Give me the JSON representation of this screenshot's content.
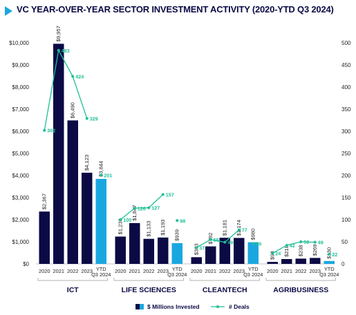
{
  "title": "VC YEAR-OVER-YEAR SECTOR INVESTMENT ACTIVITY (2020-YTD Q3 2024)",
  "colors": {
    "bar": "#0b0a45",
    "bar_ytd": "#1aa7e0",
    "deals": "#1dbf97",
    "title": "#0b0a45",
    "accent": "#1aa7e0"
  },
  "chart_data": {
    "type": "bar",
    "y_left": {
      "min": 0,
      "max": 10000,
      "ticks": [
        "$0",
        "$1,000",
        "$2,000",
        "$3,000",
        "$4,000",
        "$5,000",
        "$6,000",
        "$7,000",
        "$8,000",
        "$9,000",
        "$10,000"
      ]
    },
    "y_right": {
      "min": 0,
      "max": 500,
      "ticks": [
        "0",
        "50",
        "100",
        "150",
        "200",
        "250",
        "300",
        "350",
        "400",
        "450",
        "500"
      ]
    },
    "groups": [
      {
        "name": "ICT",
        "categories": [
          "2020",
          "2021",
          "2022",
          "2023",
          "YTD Q3 2024"
        ],
        "invested": [
          2367,
          9957,
          6490,
          4123,
          3844
        ],
        "invested_labels": [
          "$2,367",
          "$9,957",
          "$6,490",
          "$4,123",
          "$3,844"
        ],
        "deals": [
          302,
          483,
          424,
          329,
          201
        ],
        "deal_labels": [
          "302",
          "483",
          "424",
          "329",
          "201"
        ]
      },
      {
        "name": "LIFE SCIENCES",
        "categories": [
          "2020",
          "2021",
          "2022",
          "2023",
          "YTD Q3 2024"
        ],
        "invested": [
          1236,
          1847,
          1133,
          1193,
          939
        ],
        "invested_labels": [
          "$1,236",
          "$1,847",
          "$1,133",
          "$1,193",
          "$939"
        ],
        "deals": [
          100,
          126,
          127,
          157,
          98
        ],
        "deal_labels": [
          "100",
          "126",
          "127",
          "157",
          "98"
        ]
      },
      {
        "name": "CLEANTECH",
        "categories": [
          "2020",
          "2021",
          "2022",
          "2023",
          "YTD Q3 2024"
        ],
        "invested": [
          303,
          792,
          1181,
          1174,
          980
        ],
        "invested_labels": [
          "$303",
          "$792",
          "$1,181",
          "$1,174",
          "$980"
        ],
        "deals": [
          37,
          55,
          49,
          77,
          46
        ],
        "deal_labels": [
          "37",
          "55",
          "49",
          "77",
          "46"
        ]
      },
      {
        "name": "AGRIBUSINESS",
        "categories": [
          "2020",
          "2021",
          "2022",
          "2023",
          "YTD Q3 2024"
        ],
        "invested": [
          90,
          218,
          238,
          269,
          130
        ],
        "invested_labels": [
          "$90",
          "$218",
          "$238",
          "$269",
          "$130"
        ],
        "deals": [
          24,
          42,
          50,
          49,
          22
        ],
        "deal_labels": [
          "24",
          "42",
          "50",
          "49",
          "22"
        ]
      }
    ],
    "legend": {
      "placement": "bottom",
      "invested": "$ Millions Invested",
      "deals": "# Deals"
    },
    "grid": false
  }
}
